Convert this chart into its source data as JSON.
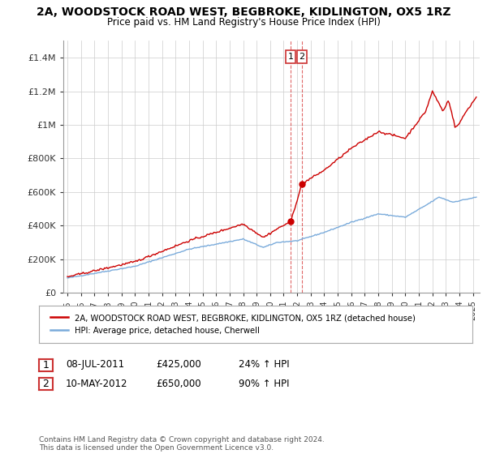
{
  "title": "2A, WOODSTOCK ROAD WEST, BEGBROKE, KIDLINGTON, OX5 1RZ",
  "subtitle": "Price paid vs. HM Land Registry's House Price Index (HPI)",
  "ylabel_ticks": [
    "£0",
    "£200K",
    "£400K",
    "£600K",
    "£800K",
    "£1M",
    "£1.2M",
    "£1.4M"
  ],
  "ytick_values": [
    0,
    200000,
    400000,
    600000,
    800000,
    1000000,
    1200000,
    1400000
  ],
  "ylim": [
    0,
    1500000
  ],
  "xlim_start": 1994.7,
  "xlim_end": 2025.5,
  "hpi_color": "#7aabdb",
  "price_color": "#cc0000",
  "marker1_x": 2011.52,
  "marker1_y": 425000,
  "marker2_x": 2012.36,
  "marker2_y": 650000,
  "annotation1": [
    "1",
    "08-JUL-2011",
    "£425,000",
    "24% ↑ HPI"
  ],
  "annotation2": [
    "2",
    "10-MAY-2012",
    "£650,000",
    "90% ↑ HPI"
  ],
  "legend_line1": "2A, WOODSTOCK ROAD WEST, BEGBROKE, KIDLINGTON, OX5 1RZ (detached house)",
  "legend_line2": "HPI: Average price, detached house, Cherwell",
  "footer": "Contains HM Land Registry data © Crown copyright and database right 2024.\nThis data is licensed under the Open Government Licence v3.0.",
  "grid_color": "#cccccc",
  "background_color": "#ffffff",
  "hpi_anchors": {
    "1995.0": 88000,
    "2000.0": 158000,
    "2004.0": 260000,
    "2008.0": 320000,
    "2009.5": 270000,
    "2010.5": 300000,
    "2012.0": 310000,
    "2014.0": 360000,
    "2016.0": 420000,
    "2018.0": 470000,
    "2020.0": 450000,
    "2021.5": 520000,
    "2022.5": 570000,
    "2023.5": 540000,
    "2025.3": 570000
  },
  "price_anchors": {
    "1995.0": 95000,
    "2000.0": 185000,
    "2004.0": 310000,
    "2008.0": 410000,
    "2009.5": 330000,
    "2010.5": 380000,
    "2011.52": 425000,
    "2012.36": 650000,
    "2014.0": 730000,
    "2016.0": 860000,
    "2018.0": 960000,
    "2020.0": 920000,
    "2021.5": 1080000,
    "2022.0": 1200000,
    "2022.8": 1080000,
    "2023.2": 1150000,
    "2023.7": 980000,
    "2024.0": 1010000,
    "2024.5": 1080000,
    "2025.3": 1170000
  }
}
